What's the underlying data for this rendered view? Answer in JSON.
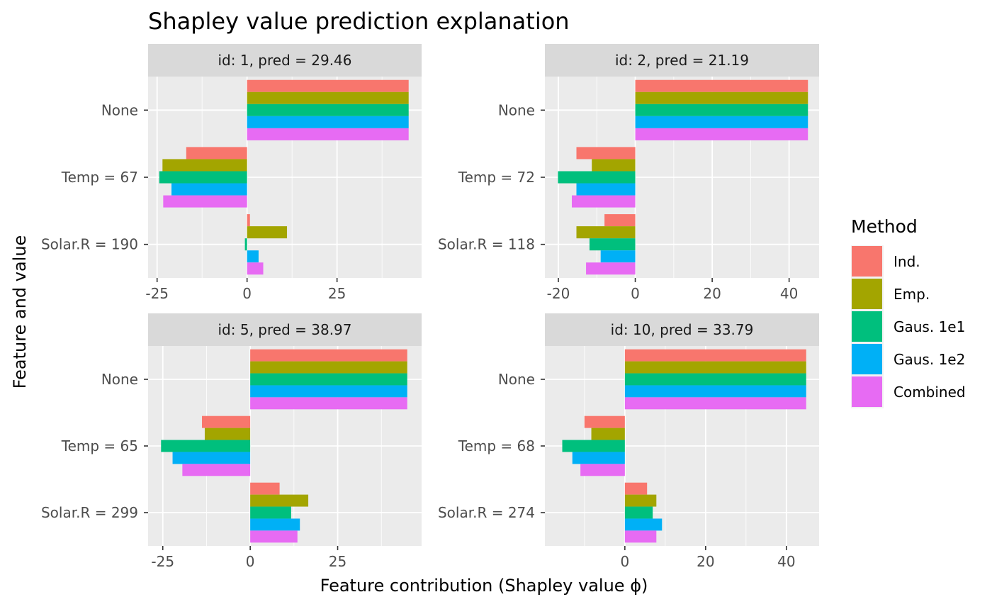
{
  "chart_data": {
    "type": "bar",
    "orientation": "horizontal",
    "title": "Shapley value prediction explanation",
    "xlabel": "Feature contribution (Shapley value ϕ)",
    "ylabel": "Feature and value",
    "grid": true,
    "legend": {
      "title": "Method",
      "placement": "right",
      "entries": [
        {
          "name": "Ind.",
          "color": "#F8766D"
        },
        {
          "name": "Emp.",
          "color": "#A3A500"
        },
        {
          "name": "Gaus. 1e1",
          "color": "#00BF7D"
        },
        {
          "name": "Gaus. 1e2",
          "color": "#00B0F6"
        },
        {
          "name": "Combined",
          "color": "#E76BF3"
        }
      ]
    },
    "panels": [
      {
        "strip": "id: 1, pred = 29.46",
        "xlim": [
          -27.5,
          48.5
        ],
        "xticks": [
          -25,
          0,
          25
        ],
        "xtick_labels": [
          "-25",
          "0",
          "25"
        ],
        "categories": [
          "None",
          "Temp = 67",
          "Solar.R = 190"
        ],
        "values": {
          "None": [
            44.9,
            44.9,
            44.9,
            44.9,
            44.9
          ],
          "Temp = 67": [
            -16.9,
            -23.5,
            -24.4,
            -21.0,
            -23.3
          ],
          "Solar.R = 190": [
            0.8,
            11.1,
            -0.6,
            3.2,
            4.5
          ]
        }
      },
      {
        "strip": "id: 2, pred = 21.19",
        "xlim": [
          -23.5,
          47.8
        ],
        "xticks": [
          -20,
          0,
          20,
          40
        ],
        "xtick_labels": [
          "-20",
          "0",
          "20",
          "40"
        ],
        "categories": [
          "None",
          "Temp = 72",
          "Solar.R = 118"
        ],
        "values": {
          "None": [
            44.9,
            44.9,
            44.9,
            44.9,
            44.9
          ],
          "Temp = 72": [
            -15.3,
            -11.3,
            -20.1,
            -15.3,
            -16.5
          ],
          "Solar.R = 118": [
            -8.0,
            -15.3,
            -11.9,
            -9.0,
            -12.8
          ]
        }
      },
      {
        "strip": "id: 5, pred = 38.97",
        "xlim": [
          -29.2,
          49.0
        ],
        "xticks": [
          -25,
          0,
          25
        ],
        "xtick_labels": [
          "-25",
          "0",
          "25"
        ],
        "categories": [
          "None",
          "Temp = 65",
          "Solar.R = 299"
        ],
        "values": {
          "None": [
            44.9,
            44.9,
            44.9,
            44.9,
            44.9
          ],
          "Temp = 65": [
            -13.8,
            -13.0,
            -25.5,
            -22.2,
            -19.4
          ],
          "Solar.R = 299": [
            8.4,
            16.6,
            11.7,
            14.2,
            13.5
          ]
        }
      },
      {
        "strip": "id: 10, pred = 33.79",
        "xlim": [
          -19.8,
          48.1
        ],
        "xticks": [
          0,
          20,
          40
        ],
        "xtick_labels": [
          "0",
          "20",
          "40"
        ],
        "categories": [
          "None",
          "Temp = 68",
          "Solar.R = 274"
        ],
        "values": {
          "None": [
            44.9,
            44.9,
            44.9,
            44.9,
            44.9
          ],
          "Temp = 68": [
            -10.0,
            -8.3,
            -15.5,
            -13.0,
            -11.0
          ],
          "Solar.R = 274": [
            5.5,
            7.8,
            6.9,
            9.2,
            7.8
          ]
        }
      }
    ]
  }
}
